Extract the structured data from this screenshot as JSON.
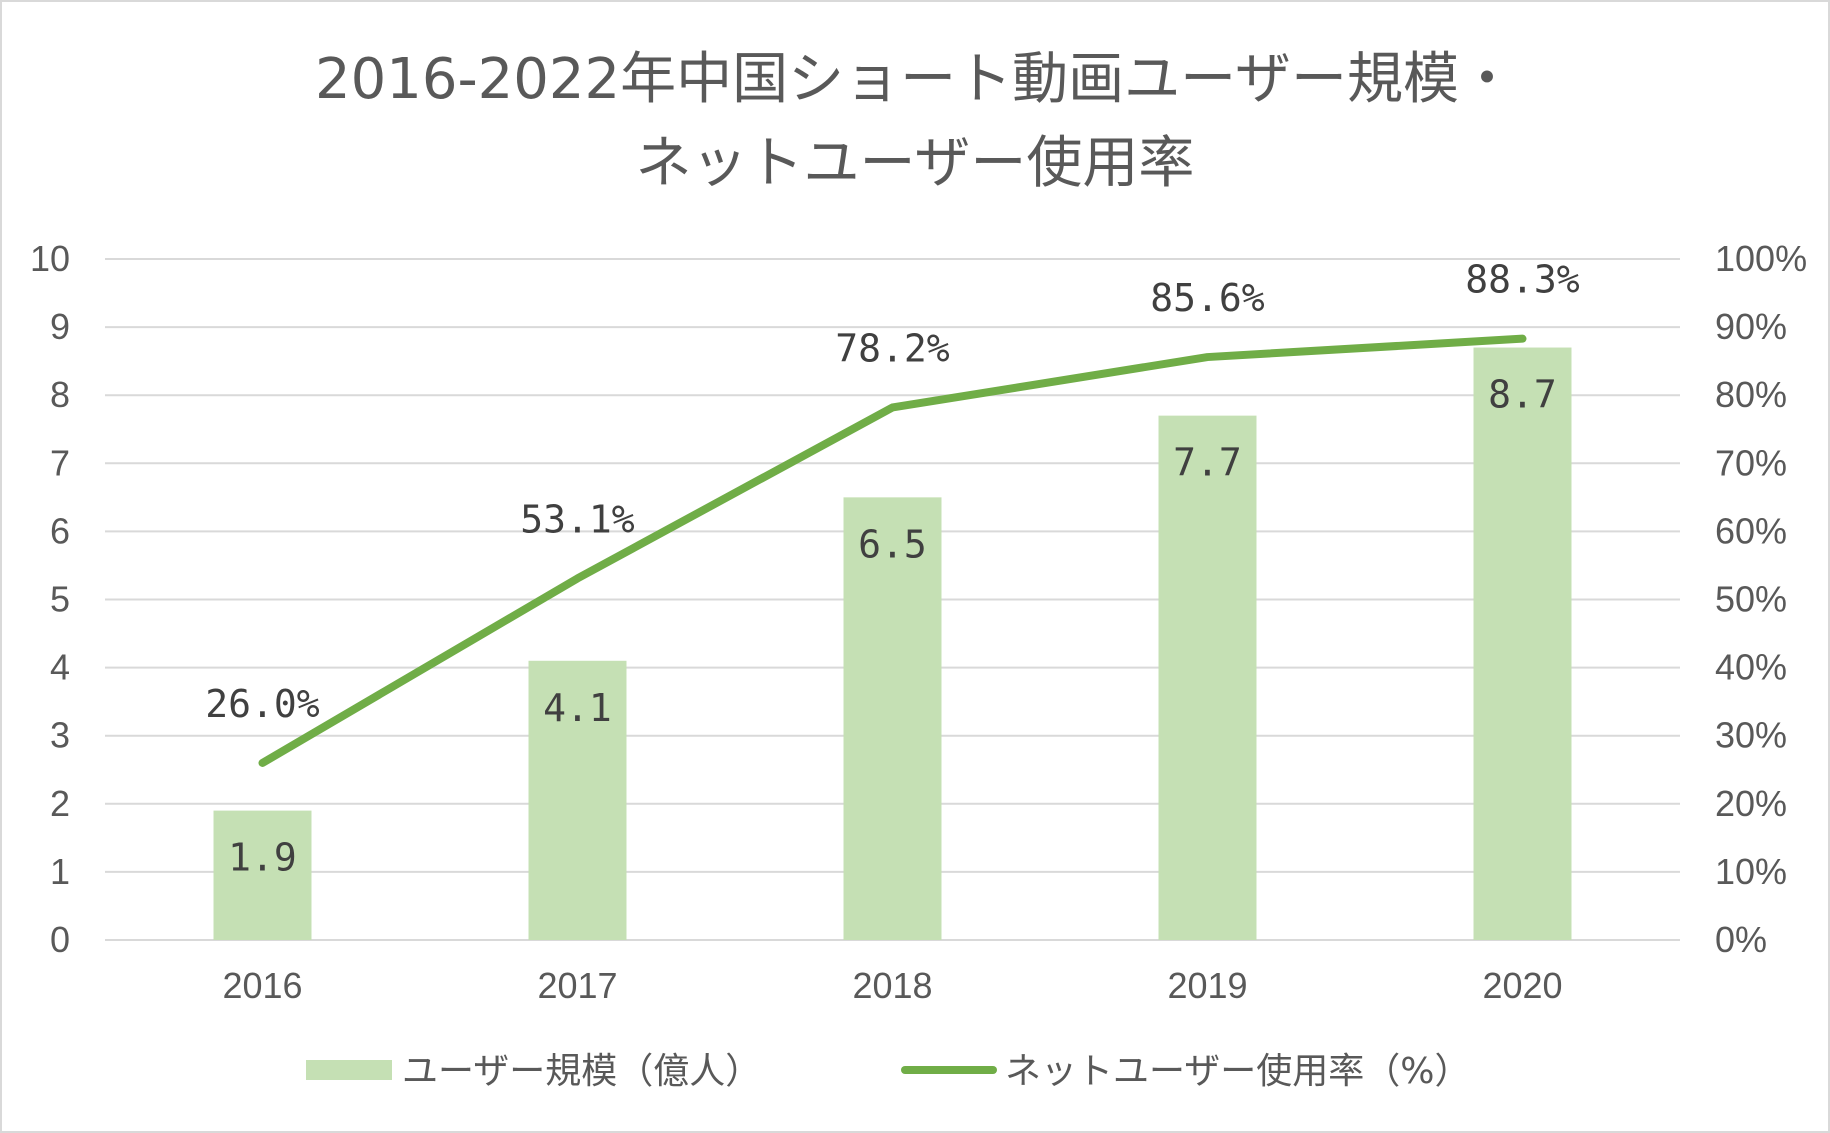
{
  "chart_data": {
    "type": "bar",
    "title_lines": [
      "2016-2022年中国ショート動画ユーザー規模・",
      "ネットユーザー使用率"
    ],
    "categories": [
      "2016",
      "2017",
      "2018",
      "2019",
      "2020"
    ],
    "series": [
      {
        "name": "ユーザー規模（億人）",
        "type": "bar",
        "axis": "left",
        "values": [
          1.9,
          4.1,
          6.5,
          7.7,
          8.7
        ],
        "labels": [
          "1.9",
          "4.1",
          "6.5",
          "7.7",
          "8.7"
        ],
        "color": "#c5e0b4"
      },
      {
        "name": "ネットユーザー使用率（%）",
        "type": "line",
        "axis": "right",
        "values": [
          26.0,
          53.1,
          78.2,
          85.6,
          88.3
        ],
        "labels": [
          "26.0%",
          "53.1%",
          "78.2%",
          "85.6%",
          "88.3%"
        ],
        "color": "#70ad47"
      }
    ],
    "y_left": {
      "ylim": [
        0,
        10
      ],
      "ticks": [
        "0",
        "1",
        "2",
        "3",
        "4",
        "5",
        "6",
        "7",
        "8",
        "9",
        "10"
      ]
    },
    "y_right": {
      "ylim": [
        0,
        100
      ],
      "ticks": [
        "0%",
        "10%",
        "20%",
        "30%",
        "40%",
        "50%",
        "60%",
        "70%",
        "80%",
        "90%",
        "100%"
      ]
    },
    "grid": true,
    "legend_position": "bottom",
    "colors": {
      "gridline": "#d9d9d9",
      "text": "#595959",
      "border": "#d9d9d9"
    }
  }
}
